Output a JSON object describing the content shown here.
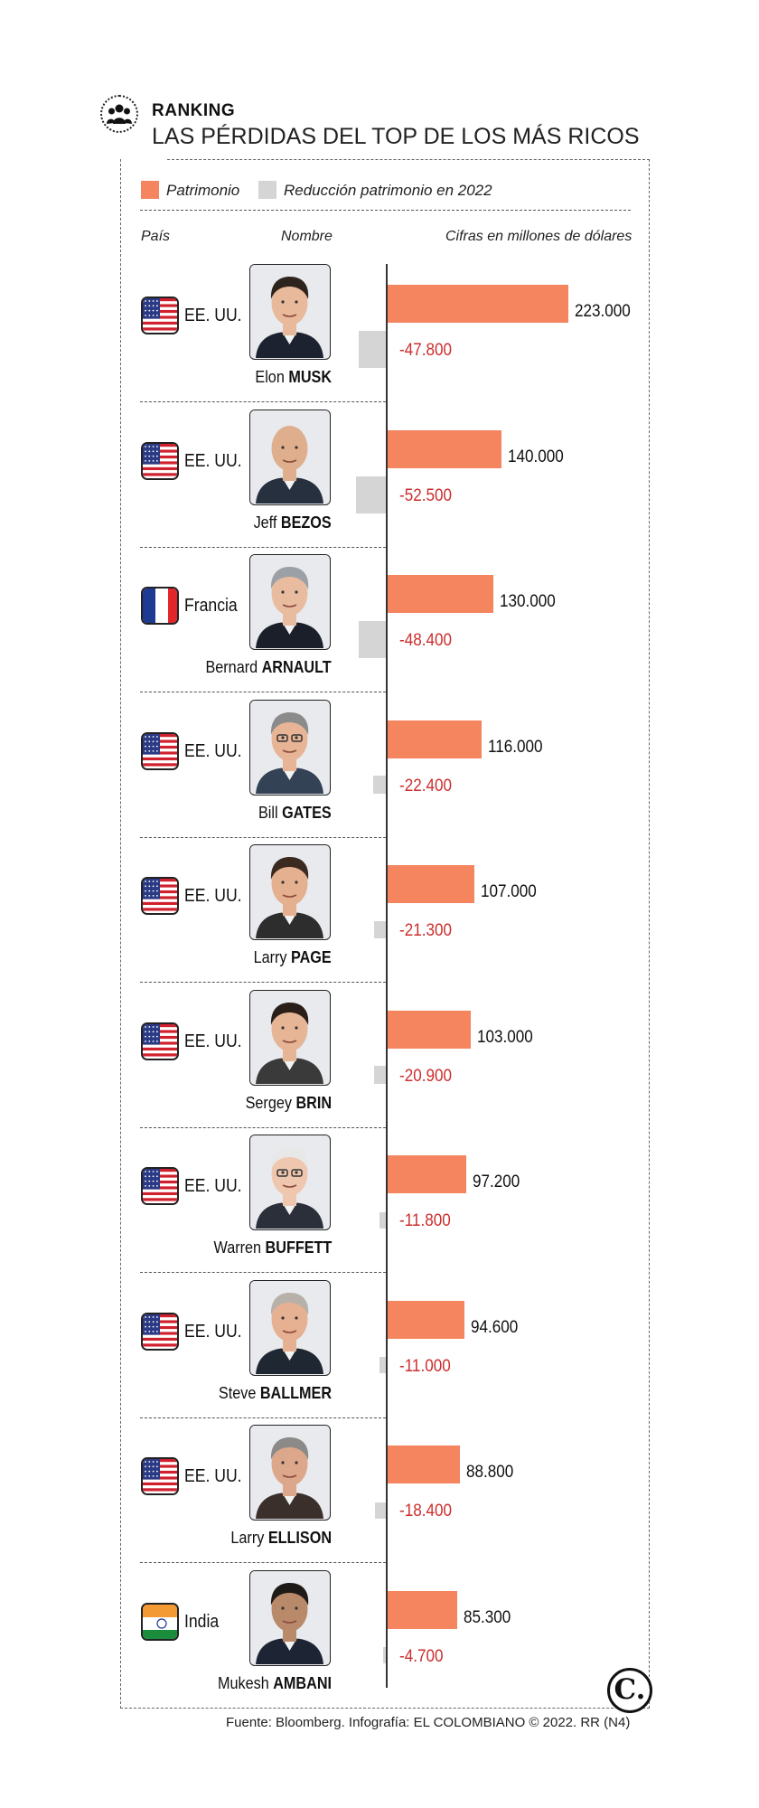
{
  "header": {
    "kicker": "RANKING",
    "title": "LAS PÉRDIDAS DEL TOP DE LOS MÁS RICOS",
    "icon": "people-group-icon"
  },
  "legend": {
    "patrimonio": "Patrimonio",
    "reduccion": "Reducción patrimonio en 2022"
  },
  "columns": {
    "pais": "País",
    "nombre": "Nombre",
    "cifras": "Cifras en millones de dólares"
  },
  "colors": {
    "patrimonio": "#f4855e",
    "reduccion": "#d5d5d5",
    "loss_text": "#cc2e2e"
  },
  "chart_data": {
    "type": "bar",
    "title": "LAS PÉRDIDAS DEL TOP DE LOS MÁS RICOS",
    "unit": "Cifras en millones de dólares",
    "categories": [
      "Elon MUSK",
      "Jeff BEZOS",
      "Bernard ARNAULT",
      "Bill GATES",
      "Larry PAGE",
      "Sergey BRIN",
      "Warren BUFFETT",
      "Steve BALLMER",
      "Larry ELLISON",
      "Mukesh AMBANI"
    ],
    "series": [
      {
        "name": "Patrimonio",
        "values": [
          223000,
          140000,
          130000,
          116000,
          107000,
          103000,
          97200,
          94600,
          88800,
          85300
        ]
      },
      {
        "name": "Reducción patrimonio en 2022",
        "values": [
          -47800,
          -52500,
          -48400,
          -22400,
          -21300,
          -20900,
          -11800,
          -11000,
          -18400,
          -4700
        ]
      }
    ],
    "rows": [
      {
        "country": "EE. UU.",
        "flag": "us-flag-icon",
        "first": "Elon",
        "last": "MUSK",
        "patrimonio": 223000,
        "reduccion": -47800,
        "patrimonio_label": "223.000",
        "reduccion_label": "-47.800"
      },
      {
        "country": "EE. UU.",
        "flag": "us-flag-icon",
        "first": "Jeff",
        "last": "BEZOS",
        "patrimonio": 140000,
        "reduccion": -52500,
        "patrimonio_label": "140.000",
        "reduccion_label": "-52.500"
      },
      {
        "country": "Francia",
        "flag": "france-flag-icon",
        "first": "Bernard",
        "last": "ARNAULT",
        "patrimonio": 130000,
        "reduccion": -48400,
        "patrimonio_label": "130.000",
        "reduccion_label": "-48.400"
      },
      {
        "country": "EE. UU.",
        "flag": "us-flag-icon",
        "first": "Bill",
        "last": "GATES",
        "patrimonio": 116000,
        "reduccion": -22400,
        "patrimonio_label": "116.000",
        "reduccion_label": "-22.400"
      },
      {
        "country": "EE. UU.",
        "flag": "us-flag-icon",
        "first": "Larry",
        "last": "PAGE",
        "patrimonio": 107000,
        "reduccion": -21300,
        "patrimonio_label": "107.000",
        "reduccion_label": "-21.300"
      },
      {
        "country": "EE. UU.",
        "flag": "us-flag-icon",
        "first": "Sergey",
        "last": "BRIN",
        "patrimonio": 103000,
        "reduccion": -20900,
        "patrimonio_label": "103.000",
        "reduccion_label": "-20.900"
      },
      {
        "country": "EE. UU.",
        "flag": "us-flag-icon",
        "first": "Warren",
        "last": "BUFFETT",
        "patrimonio": 97200,
        "reduccion": -11800,
        "patrimonio_label": "97.200",
        "reduccion_label": "-11.800"
      },
      {
        "country": "EE. UU.",
        "flag": "us-flag-icon",
        "first": "Steve",
        "last": "BALLMER",
        "patrimonio": 94600,
        "reduccion": -11000,
        "patrimonio_label": "94.600",
        "reduccion_label": "-11.000"
      },
      {
        "country": "EE. UU.",
        "flag": "us-flag-icon",
        "first": "Larry",
        "last": "ELLISON",
        "patrimonio": 88800,
        "reduccion": -18400,
        "patrimonio_label": "88.800",
        "reduccion_label": "-18.400"
      },
      {
        "country": "India",
        "flag": "india-flag-icon",
        "first": "Mukesh",
        "last": "AMBANI",
        "patrimonio": 85300,
        "reduccion": -4700,
        "patrimonio_label": "85.300",
        "reduccion_label": "-4.700"
      }
    ]
  },
  "footer": {
    "source": "Fuente: Bloomberg. Infografía: EL COLOMBIANO © 2022. RR (N4)",
    "logo": "C."
  }
}
